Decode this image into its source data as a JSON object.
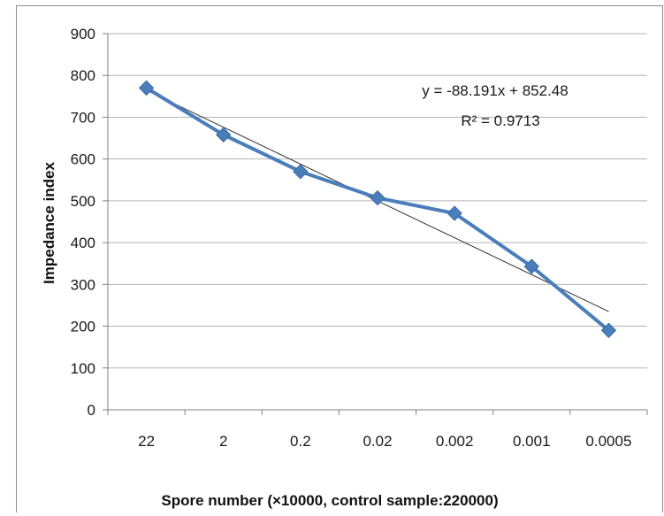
{
  "chart_data": {
    "type": "line",
    "title": "",
    "xlabel": "Spore number (×10000, control sample:220000)",
    "ylabel": "Impedance index",
    "categories": [
      "22",
      "2",
      "0.2",
      "0.02",
      "0.002",
      "0.001",
      "0.0005"
    ],
    "series": [
      {
        "name": "",
        "values": [
          770,
          658,
          570,
          507,
          470,
          343,
          190
        ]
      }
    ],
    "trendline": {
      "type": "linear",
      "equation": "y = -88.191x + 852.48",
      "r_squared": "R² = 0.9713",
      "slope": -88.191,
      "intercept": 852.48
    },
    "ylim": [
      0,
      900
    ],
    "yticks": [
      0,
      100,
      200,
      300,
      400,
      500,
      600,
      700,
      800,
      900
    ],
    "grid": true,
    "legend": "none",
    "colors": {
      "series": "#4a7ebb",
      "trend": "#333333",
      "grid": "#b3b3b3"
    }
  }
}
